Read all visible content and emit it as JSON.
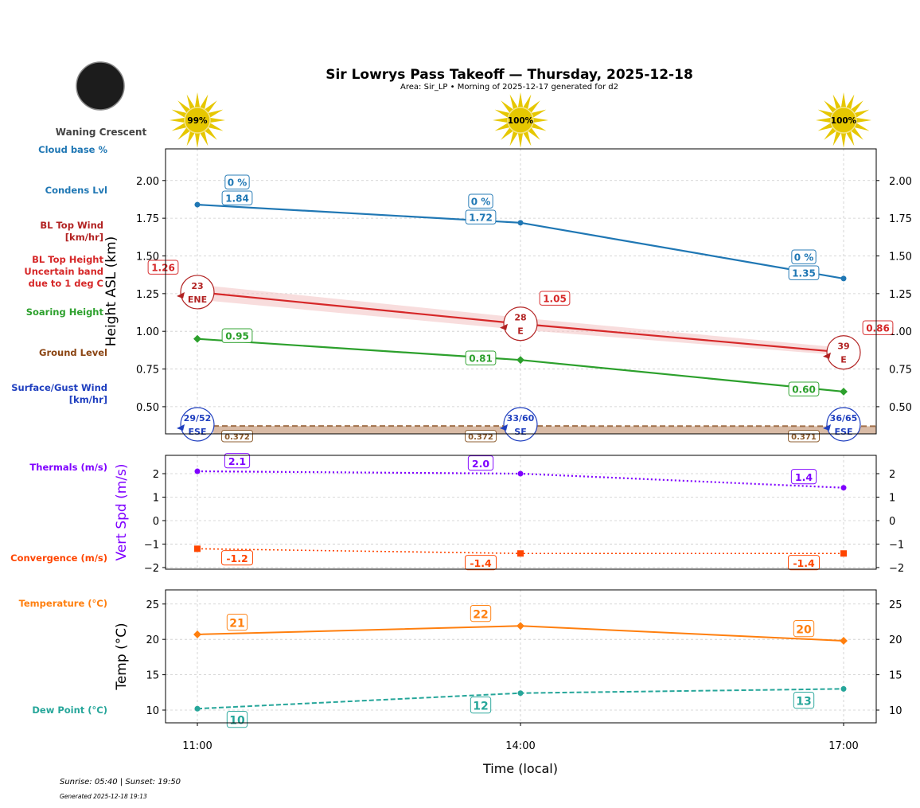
{
  "title": "Sir Lowrys Pass Takeoff — Thursday, 2025-12-18",
  "subtitle": "Area: Sir_LP • Morning of 2025-12-17 generated for d2",
  "moon_phase": "Waning Crescent",
  "footer": {
    "sun": "Sunrise: 05:40 | Sunset: 19:50",
    "generated": "Generated 2025-12-18 19:13"
  },
  "sun_percent": [
    "99%",
    "100%",
    "100%"
  ],
  "row_labels": {
    "cloud_base": "Cloud base %",
    "condens": "Condens Lvl",
    "bl_wind": [
      "BL Top Wind",
      "[km/hr]"
    ],
    "bl_height": [
      "BL Top Height",
      "Uncertain band",
      "due to 1 deg C"
    ],
    "soaring": "Soaring Height",
    "ground": "Ground Level",
    "surface_wind": [
      "Surface/Gust Wind",
      "[km/hr]"
    ],
    "thermals": "Thermals (m/s)",
    "convergence": "Convergence (m/s)",
    "temperature": "Temperature (°C)",
    "dew": "Dew Point (°C)"
  },
  "colors": {
    "condens": "#1f77b4",
    "bl": "#d62728",
    "bl_wind": "#b22222",
    "soaring": "#2ca02c",
    "ground": "#8b5a2b",
    "surface_wind": "#1f3fbf",
    "thermals": "#7f00ff",
    "convergence": "#ff4500",
    "temperature": "#ff7f0e",
    "dew": "#26a69a",
    "sun": "#e6c700"
  },
  "chart_data": [
    {
      "type": "line",
      "ylabel": "Height ASL (km)",
      "ylim": [
        0.32,
        2.21
      ],
      "yticks": [
        "0.50",
        "0.75",
        "1.00",
        "1.25",
        "1.50",
        "1.75",
        "2.00"
      ],
      "x": [
        "11:00",
        "14:00",
        "17:00"
      ],
      "grid": true,
      "series": [
        {
          "key": "condens",
          "values": [
            1.84,
            1.72,
            1.35
          ],
          "labels": [
            "1.84",
            "1.72",
            "1.35"
          ],
          "cloud_pct": [
            "0 %",
            "0 %",
            "0 %"
          ]
        },
        {
          "key": "bl",
          "values": [
            1.26,
            1.05,
            0.86
          ],
          "band": [
            [
              1.21,
              1.31
            ],
            [
              1.01,
              1.09
            ],
            [
              0.84,
              0.89
            ]
          ],
          "labels": [
            "1.26",
            "1.05",
            "0.86"
          ]
        },
        {
          "key": "soaring",
          "values": [
            0.95,
            0.81,
            0.6
          ],
          "labels": [
            "0.95",
            "0.81",
            "0.60"
          ]
        },
        {
          "key": "ground",
          "values": [
            0.372,
            0.372,
            0.371
          ],
          "labels": [
            "0.372",
            "0.372",
            "0.371"
          ]
        }
      ],
      "bl_wind": [
        {
          "speed": "23",
          "dir": "ENE"
        },
        {
          "speed": "28",
          "dir": "E"
        },
        {
          "speed": "39",
          "dir": "E"
        }
      ],
      "surface_wind": [
        {
          "speed": "29/52",
          "dir": "ESE"
        },
        {
          "speed": "33/60",
          "dir": "SE"
        },
        {
          "speed": "36/65",
          "dir": "ESE"
        }
      ]
    },
    {
      "type": "line",
      "ylabel": "Vert Spd (m/s)",
      "ylim": [
        -2.07,
        2.78
      ],
      "yticks": [
        "−2",
        "−1",
        "0",
        "1",
        "2"
      ],
      "ytick_values": [
        -2,
        -1,
        0,
        1,
        2
      ],
      "x": [
        "11:00",
        "14:00",
        "17:00"
      ],
      "series": [
        {
          "key": "thermals",
          "values": [
            2.1,
            2.0,
            1.4
          ],
          "labels": [
            "2.1",
            "2.0",
            "1.4"
          ]
        },
        {
          "key": "convergence",
          "values": [
            -1.2,
            -1.4,
            -1.4
          ],
          "labels": [
            "-1.2",
            "-1.4",
            "-1.4"
          ]
        }
      ]
    },
    {
      "type": "line",
      "ylabel": "Temp (°C)",
      "xlabel": "Time (local)",
      "ylim": [
        8.2,
        27.0
      ],
      "yticks": [
        "10",
        "15",
        "20",
        "25"
      ],
      "ytick_values": [
        10,
        15,
        20,
        25
      ],
      "x": [
        "11:00",
        "14:00",
        "17:00"
      ],
      "series": [
        {
          "key": "temperature",
          "values": [
            20.7,
            21.9,
            19.8
          ],
          "labels": [
            "21",
            "22",
            "20"
          ]
        },
        {
          "key": "dew",
          "values": [
            10.2,
            12.4,
            13.0
          ],
          "labels": [
            "10",
            "12",
            "13"
          ]
        }
      ]
    }
  ]
}
